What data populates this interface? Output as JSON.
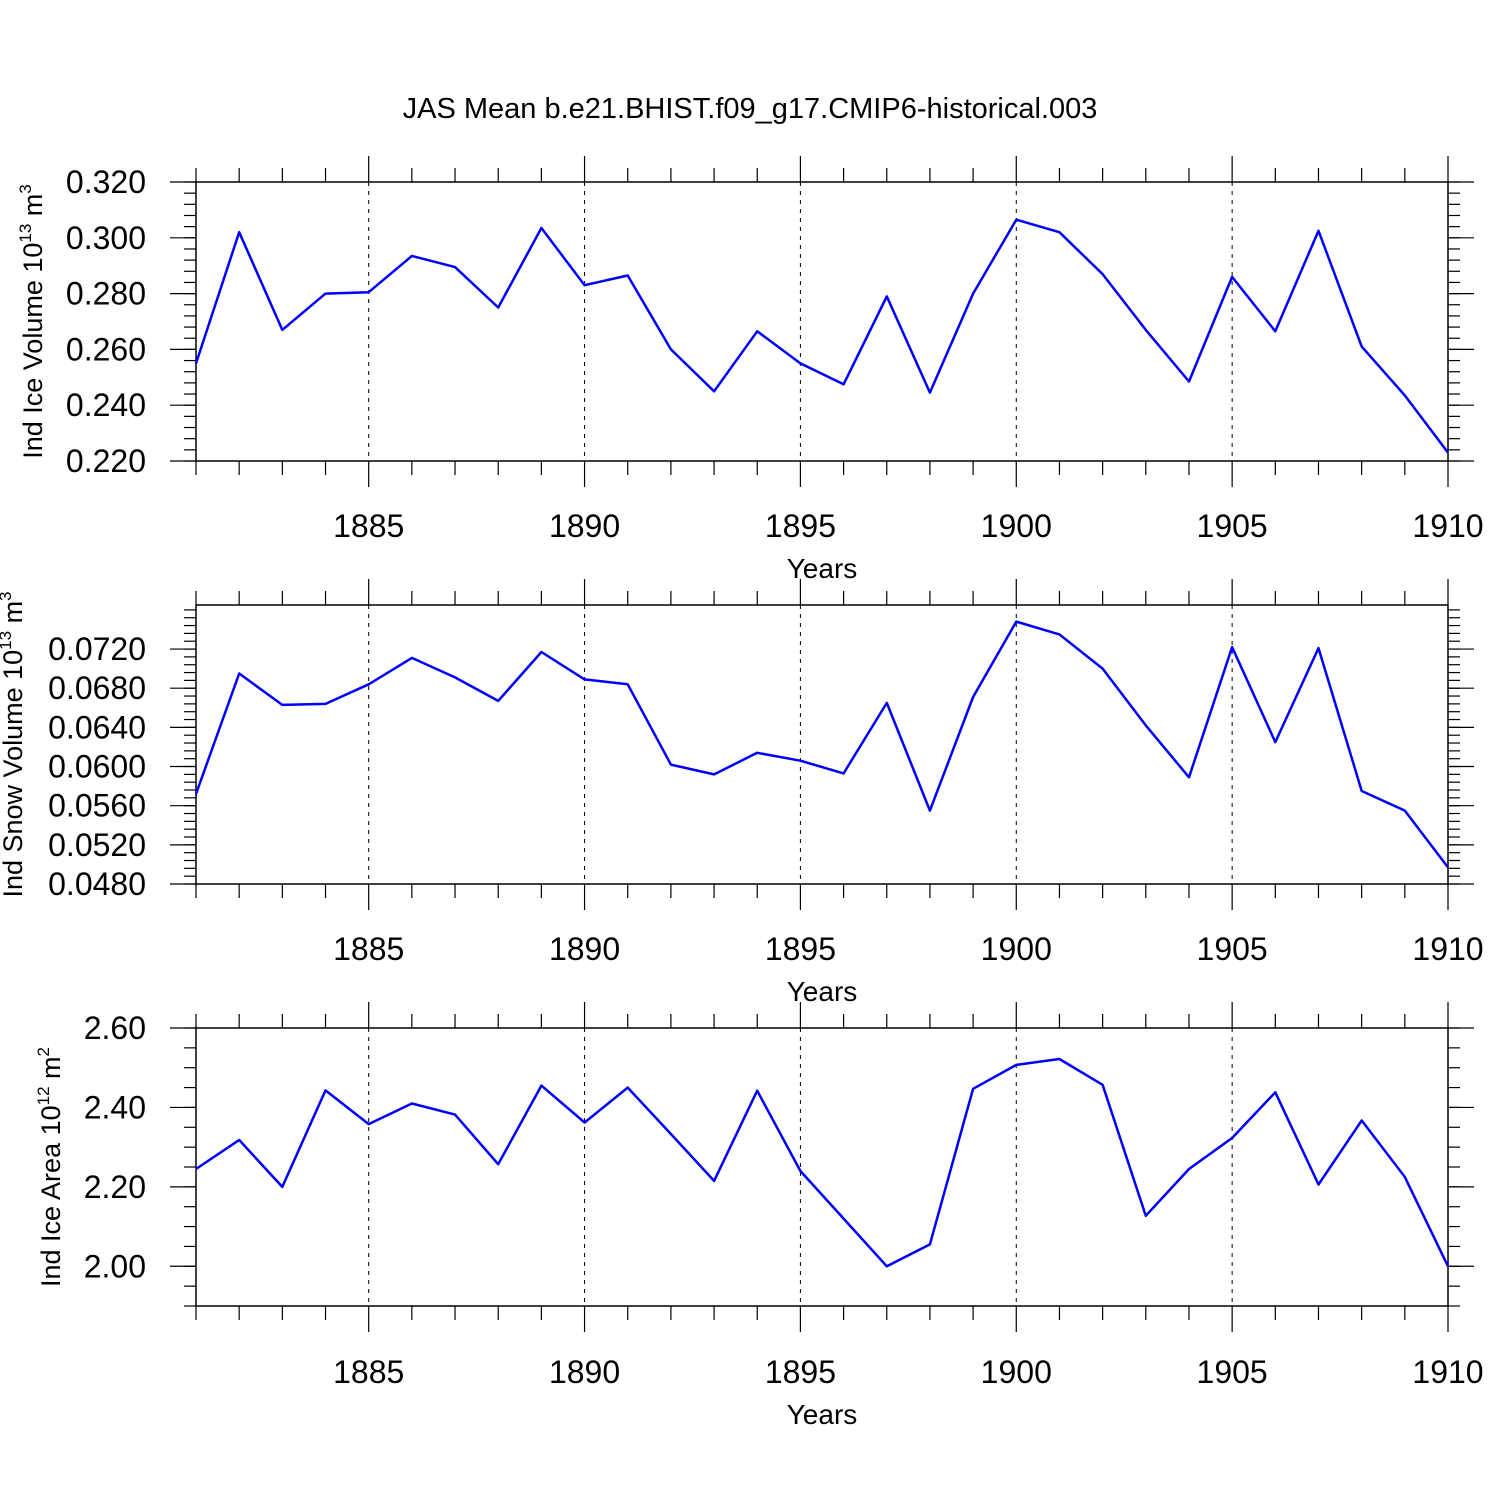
{
  "title": "JAS Mean b.e21.BHIST.f09_g17.CMIP6-historical.003",
  "series_color": "#0000ff",
  "chart_data": [
    {
      "type": "line",
      "ylabel_main": "Ind Ice Volume 10",
      "ylabel_exp": "13",
      "ylabel_unit": " m",
      "ylabel_unit_exp": "3",
      "xlabel": "Years",
      "x": [
        1881,
        1882,
        1883,
        1884,
        1885,
        1886,
        1887,
        1888,
        1889,
        1890,
        1891,
        1892,
        1893,
        1894,
        1895,
        1896,
        1897,
        1898,
        1899,
        1900,
        1901,
        1902,
        1903,
        1904,
        1905,
        1906,
        1907,
        1908,
        1909,
        1910
      ],
      "values": [
        0.255,
        0.302,
        0.267,
        0.28,
        0.2805,
        0.2935,
        0.2895,
        0.275,
        0.3035,
        0.283,
        0.2865,
        0.26,
        0.245,
        0.2665,
        0.255,
        0.2475,
        0.279,
        0.2445,
        0.28,
        0.3065,
        0.302,
        0.287,
        0.267,
        0.2485,
        0.286,
        0.2665,
        0.3025,
        0.261,
        0.2435,
        0.223
      ],
      "xlim": [
        1881,
        1910
      ],
      "ylim": [
        0.22,
        0.32
      ],
      "yticks": [
        0.22,
        0.24,
        0.26,
        0.28,
        0.3,
        0.32
      ],
      "ytick_labels": [
        "0.220",
        "0.240",
        "0.260",
        "0.280",
        "0.300",
        "0.320"
      ],
      "yminor_step": 0.004,
      "xticks": [
        1885,
        1890,
        1895,
        1900,
        1905,
        1910
      ],
      "xtick_labels": [
        "1885",
        "1890",
        "1895",
        "1900",
        "1905",
        "1910"
      ],
      "grid": "dashed vertical at major x ticks"
    },
    {
      "type": "line",
      "ylabel_main": "Ind Snow Volume 10",
      "ylabel_exp": "13",
      "ylabel_unit": " m",
      "ylabel_unit_exp": "3",
      "xlabel": "Years",
      "x": [
        1881,
        1882,
        1883,
        1884,
        1885,
        1886,
        1887,
        1888,
        1889,
        1890,
        1891,
        1892,
        1893,
        1894,
        1895,
        1896,
        1897,
        1898,
        1899,
        1900,
        1901,
        1902,
        1903,
        1904,
        1905,
        1906,
        1907,
        1908,
        1909,
        1910
      ],
      "values": [
        0.0572,
        0.0695,
        0.0663,
        0.0664,
        0.0684,
        0.0711,
        0.0691,
        0.0667,
        0.0717,
        0.0689,
        0.0684,
        0.0602,
        0.0592,
        0.0614,
        0.0606,
        0.0593,
        0.0665,
        0.0555,
        0.0671,
        0.0748,
        0.0735,
        0.07,
        0.0642,
        0.0589,
        0.0722,
        0.0625,
        0.0721,
        0.0575,
        0.0555,
        0.0497
      ],
      "xlim": [
        1881,
        1910
      ],
      "ylim": [
        0.048,
        0.0765
      ],
      "yticks": [
        0.048,
        0.052,
        0.056,
        0.06,
        0.064,
        0.068,
        0.072
      ],
      "ytick_labels": [
        "0.0480",
        "0.0520",
        "0.0560",
        "0.0600",
        "0.0640",
        "0.0680",
        "0.0720"
      ],
      "yminor_step": 0.0008,
      "xticks": [
        1885,
        1890,
        1895,
        1900,
        1905,
        1910
      ],
      "xtick_labels": [
        "1885",
        "1890",
        "1895",
        "1900",
        "1905",
        "1910"
      ],
      "grid": "dashed vertical at major x ticks"
    },
    {
      "type": "line",
      "ylabel_main": "Ind Ice Area 10",
      "ylabel_exp": "12",
      "ylabel_unit": " m",
      "ylabel_unit_exp": "2",
      "xlabel": "Years",
      "x": [
        1881,
        1882,
        1883,
        1884,
        1885,
        1886,
        1887,
        1888,
        1889,
        1890,
        1891,
        1892,
        1893,
        1894,
        1895,
        1896,
        1897,
        1898,
        1899,
        1900,
        1901,
        1902,
        1903,
        1904,
        1905,
        1906,
        1907,
        1908,
        1909,
        1910
      ],
      "values": [
        2.245,
        2.318,
        2.2,
        2.443,
        2.358,
        2.41,
        2.382,
        2.257,
        2.455,
        2.362,
        2.45,
        2.333,
        2.215,
        2.442,
        2.24,
        2.12,
        2.0,
        2.055,
        2.447,
        2.507,
        2.522,
        2.457,
        2.127,
        2.245,
        2.323,
        2.438,
        2.206,
        2.367,
        2.225,
        2.0
      ],
      "xlim": [
        1881,
        1910
      ],
      "ylim": [
        1.9,
        2.6
      ],
      "yticks": [
        2.0,
        2.2,
        2.4,
        2.6
      ],
      "ytick_labels": [
        "2.00",
        "2.20",
        "2.40",
        "2.60"
      ],
      "yminor_step": 0.05,
      "xticks": [
        1885,
        1890,
        1895,
        1900,
        1905,
        1910
      ],
      "xtick_labels": [
        "1885",
        "1890",
        "1895",
        "1900",
        "1905",
        "1910"
      ],
      "grid": "dashed vertical at major x ticks"
    }
  ]
}
